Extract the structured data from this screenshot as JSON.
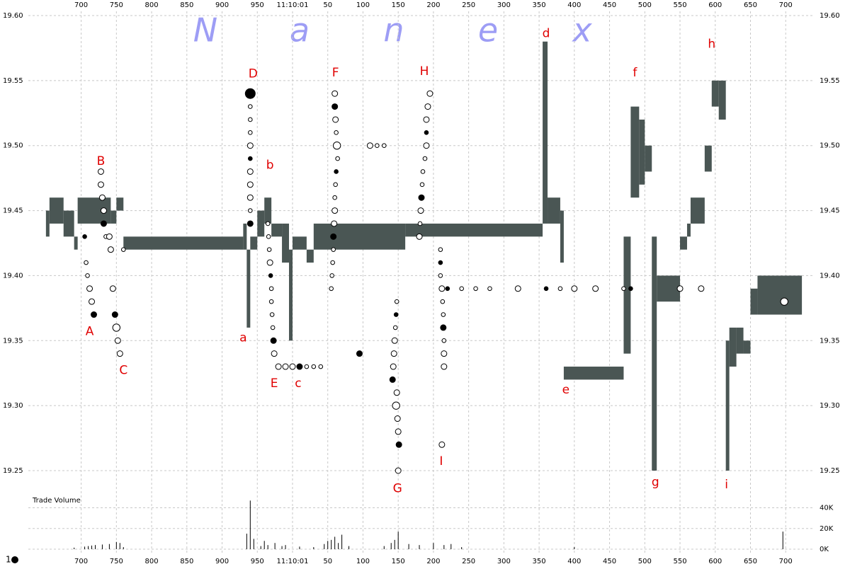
{
  "chart_data": {
    "type": "scatter",
    "xlim": [
      625,
      1741
    ],
    "xticks": [
      700,
      750,
      800,
      850,
      900,
      950,
      {
        "value": 1000,
        "label": "11:10:01"
      },
      {
        "value": 1050,
        "label": "50"
      },
      {
        "value": 1100,
        "label": "100"
      },
      {
        "value": 1150,
        "label": "150"
      },
      {
        "value": 1200,
        "label": "200"
      },
      {
        "value": 1250,
        "label": "250"
      },
      {
        "value": 1300,
        "label": "300"
      },
      {
        "value": 1350,
        "label": "350"
      },
      {
        "value": 1400,
        "label": "400"
      },
      {
        "value": 1450,
        "label": "450"
      },
      {
        "value": 1500,
        "label": "500"
      },
      {
        "value": 1550,
        "label": "550"
      },
      {
        "value": 1600,
        "label": "600"
      },
      {
        "value": 1650,
        "label": "650"
      },
      {
        "value": 1700,
        "label": "700"
      }
    ],
    "ylim": [
      19.25,
      19.6
    ],
    "yticks": [
      19.25,
      {
        "value": 19.3,
        "label": "19.30"
      },
      19.35,
      {
        "value": 19.4,
        "label": "19.40"
      },
      19.45,
      {
        "value": 19.5,
        "label": "19.50"
      },
      19.55,
      {
        "value": 19.6,
        "label": "19.60"
      }
    ],
    "grid": true,
    "watermark": [
      "N",
      "a",
      "n",
      "e",
      "x"
    ],
    "quotes": {
      "color": "#4a5654",
      "edges": [
        650,
        655,
        675,
        690,
        695,
        742,
        750,
        760,
        930,
        935,
        940,
        950,
        960,
        970,
        985,
        995,
        1000,
        1020,
        1030,
        1160,
        1355,
        1362,
        1380,
        1385,
        1470,
        1480,
        1492,
        1500,
        1510,
        1517,
        1550,
        1560,
        1565,
        1585,
        1595,
        1605,
        1615,
        1620,
        1630,
        1640,
        1650,
        1660,
        1723
      ],
      "low": [
        19.43,
        19.44,
        19.43,
        19.42,
        19.44,
        19.44,
        19.45,
        19.42,
        19.42,
        19.36,
        19.42,
        19.43,
        19.44,
        19.43,
        19.41,
        19.35,
        19.42,
        19.41,
        19.42,
        19.43,
        19.44,
        19.44,
        19.41,
        19.32,
        19.34,
        19.46,
        19.47,
        19.48,
        19.25,
        19.38,
        19.42,
        19.43,
        19.44,
        19.48,
        19.53,
        19.52,
        19.25,
        19.33,
        19.34,
        19.34,
        19.37,
        19.37
      ],
      "high": [
        19.45,
        19.46,
        19.45,
        19.43,
        19.46,
        19.45,
        19.46,
        19.43,
        19.44,
        19.42,
        19.43,
        19.45,
        19.46,
        19.44,
        19.44,
        19.42,
        19.43,
        19.42,
        19.44,
        19.44,
        19.58,
        19.46,
        19.45,
        19.33,
        19.43,
        19.53,
        19.52,
        19.5,
        19.43,
        19.4,
        19.43,
        19.44,
        19.46,
        19.5,
        19.55,
        19.55,
        19.35,
        19.36,
        19.36,
        19.35,
        19.39,
        19.4
      ]
    },
    "trades": {
      "x": [
        705,
        707,
        709,
        712,
        715,
        718,
        728,
        728,
        730,
        732,
        732,
        735,
        740,
        742,
        745,
        748,
        750,
        752,
        755,
        760,
        940,
        940,
        940,
        940,
        940,
        940,
        940,
        940,
        940,
        940,
        940,
        965,
        966,
        967,
        968,
        969,
        970,
        970,
        971,
        972,
        973,
        974,
        980,
        990,
        1000,
        1010,
        1020,
        1030,
        1040,
        1060,
        1060,
        1061,
        1062,
        1063,
        1064,
        1062,
        1061,
        1060,
        1060,
        1059,
        1058,
        1058,
        1057,
        1056,
        1055,
        1095,
        1110,
        1120,
        1130,
        1148,
        1147,
        1146,
        1145,
        1144,
        1143,
        1142,
        1148,
        1147,
        1149,
        1150,
        1151,
        1150,
        1195,
        1192,
        1190,
        1190,
        1190,
        1188,
        1185,
        1184,
        1183,
        1182,
        1181,
        1180,
        1210,
        1210,
        1210,
        1212,
        1213,
        1214,
        1214,
        1215,
        1215,
        1215,
        1212,
        1220,
        1240,
        1260,
        1280,
        1320,
        1360,
        1380,
        1400,
        1430,
        1470,
        1480,
        1550,
        1580,
        1698
      ],
      "y": [
        19.43,
        19.41,
        19.4,
        19.39,
        19.38,
        19.37,
        19.48,
        19.47,
        19.46,
        19.45,
        19.44,
        19.43,
        19.43,
        19.42,
        19.39,
        19.37,
        19.36,
        19.35,
        19.34,
        19.42,
        19.54,
        19.53,
        19.52,
        19.51,
        19.5,
        19.49,
        19.48,
        19.47,
        19.46,
        19.45,
        19.44,
        19.44,
        19.43,
        19.42,
        19.41,
        19.4,
        19.39,
        19.38,
        19.37,
        19.36,
        19.35,
        19.34,
        19.33,
        19.33,
        19.33,
        19.33,
        19.33,
        19.33,
        19.33,
        19.54,
        19.53,
        19.52,
        19.51,
        19.5,
        19.49,
        19.48,
        19.47,
        19.46,
        19.45,
        19.44,
        19.43,
        19.42,
        19.41,
        19.4,
        19.39,
        19.34,
        19.5,
        19.5,
        19.5,
        19.38,
        19.37,
        19.36,
        19.35,
        19.34,
        19.33,
        19.32,
        19.31,
        19.3,
        19.29,
        19.28,
        19.27,
        19.25,
        19.54,
        19.53,
        19.52,
        19.51,
        19.5,
        19.49,
        19.48,
        19.47,
        19.46,
        19.45,
        19.44,
        19.43,
        19.42,
        19.41,
        19.4,
        19.39,
        19.38,
        19.37,
        19.36,
        19.35,
        19.34,
        19.33,
        19.27,
        19.39,
        19.39,
        19.39,
        19.39,
        19.39,
        19.39,
        19.39,
        19.39,
        19.39,
        19.39,
        19.39,
        19.39,
        19.39,
        19.38
      ],
      "size": [
        1,
        1,
        1,
        2,
        2,
        2,
        2,
        2,
        2,
        2,
        2,
        1,
        2,
        2,
        2,
        2,
        3,
        2,
        2,
        1,
        4,
        1,
        1,
        1,
        2,
        1,
        2,
        2,
        2,
        1,
        2,
        1,
        1,
        1,
        2,
        1,
        1,
        1,
        1,
        1,
        2,
        2,
        2,
        2,
        2,
        2,
        1,
        1,
        1,
        2,
        2,
        2,
        1,
        3,
        1,
        1,
        1,
        1,
        2,
        2,
        2,
        1,
        1,
        1,
        1,
        2,
        2,
        1,
        1,
        1,
        1,
        1,
        2,
        2,
        2,
        2,
        2,
        3,
        2,
        2,
        2,
        2,
        2,
        2,
        2,
        1,
        2,
        1,
        1,
        1,
        2,
        2,
        1,
        2,
        1,
        1,
        1,
        2,
        1,
        1,
        2,
        1,
        2,
        2,
        2,
        1,
        1,
        1,
        1,
        2,
        1,
        1,
        2,
        2,
        1,
        1,
        2,
        2,
        3
      ]
    },
    "annotations": [
      {
        "text": "A",
        "x": 712,
        "y": 19.357
      },
      {
        "text": "B",
        "x": 728,
        "y": 19.488
      },
      {
        "text": "C",
        "x": 760,
        "y": 19.327
      },
      {
        "text": "a",
        "x": 930,
        "y": 19.352
      },
      {
        "text": "D",
        "x": 944,
        "y": 19.555
      },
      {
        "text": "b",
        "x": 968,
        "y": 19.485
      },
      {
        "text": "E",
        "x": 974,
        "y": 19.317
      },
      {
        "text": "c",
        "x": 1008,
        "y": 19.317
      },
      {
        "text": "F",
        "x": 1061,
        "y": 19.556
      },
      {
        "text": "G",
        "x": 1149,
        "y": 19.236
      },
      {
        "text": "H",
        "x": 1187,
        "y": 19.557
      },
      {
        "text": "I",
        "x": 1211,
        "y": 19.257
      },
      {
        "text": "d",
        "x": 1360,
        "y": 19.586
      },
      {
        "text": "e",
        "x": 1388,
        "y": 19.312
      },
      {
        "text": "f",
        "x": 1486,
        "y": 19.556
      },
      {
        "text": "g",
        "x": 1515,
        "y": 19.241
      },
      {
        "text": "h",
        "x": 1595,
        "y": 19.578
      },
      {
        "text": "i",
        "x": 1616,
        "y": 19.239
      }
    ],
    "volume": {
      "label": "Trade Volume",
      "ylim": [
        0,
        52000
      ],
      "yticks": [
        {
          "value": 0,
          "label": "0K"
        },
        {
          "value": 20000,
          "label": "20K"
        },
        {
          "value": 40000,
          "label": "40K"
        }
      ],
      "x": [
        690,
        705,
        710,
        715,
        720,
        730,
        740,
        750,
        755,
        760,
        935,
        940,
        945,
        955,
        960,
        965,
        975,
        985,
        990,
        1010,
        1030,
        1045,
        1050,
        1055,
        1060,
        1065,
        1070,
        1080,
        1130,
        1140,
        1145,
        1150,
        1165,
        1180,
        1200,
        1215,
        1225,
        1240,
        1400,
        1696
      ],
      "values": [
        1500,
        2500,
        3000,
        3500,
        4000,
        4500,
        5000,
        7000,
        6000,
        2000,
        15000,
        47000,
        10000,
        3000,
        8000,
        4000,
        6000,
        3000,
        4000,
        2500,
        2000,
        5000,
        8000,
        9000,
        12000,
        6000,
        14000,
        3000,
        3000,
        6000,
        9000,
        17000,
        5000,
        4000,
        6000,
        4000,
        5000,
        2000,
        2000,
        17000
      ]
    },
    "size_legend": "1"
  }
}
